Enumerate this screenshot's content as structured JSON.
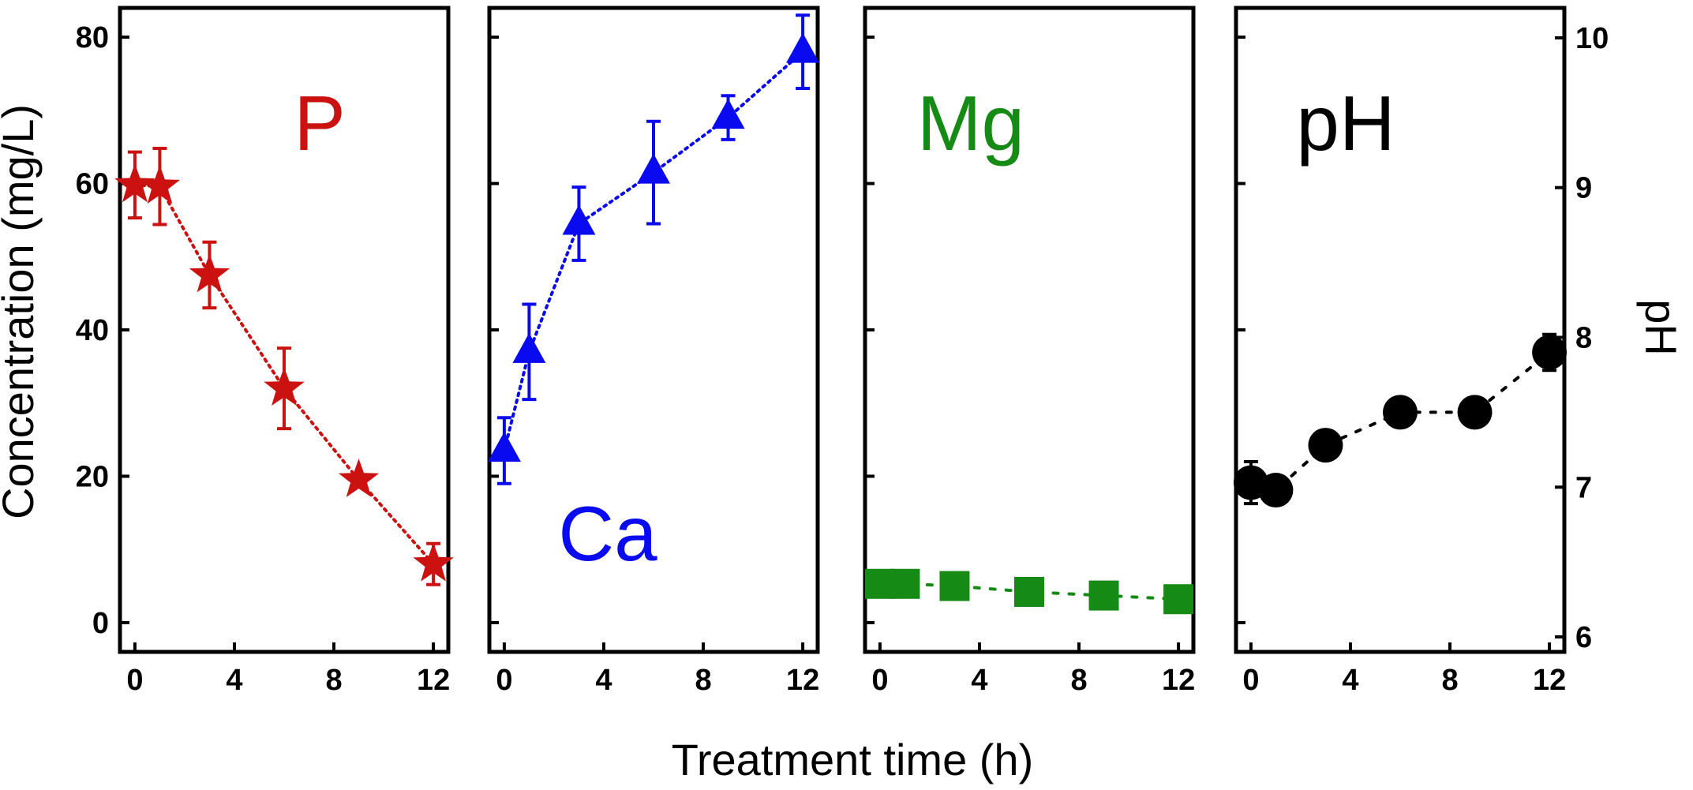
{
  "chart_data": {
    "type": "scatter",
    "xlabel": "Treatment time (h)",
    "ylabel": "Concentration (mg/L)",
    "ylabel_right": "pH",
    "ylim": [
      -4,
      84
    ],
    "ylim_right": [
      5.9,
      10.2
    ],
    "xlim": [
      -0.6,
      12.6
    ],
    "x_ticks": [
      0,
      4,
      8,
      12
    ],
    "y_ticks": [
      0,
      20,
      40,
      60,
      80
    ],
    "y_ticks_right": [
      6,
      7,
      8,
      9,
      10
    ],
    "grid": false,
    "line_style": "dotted",
    "panels": [
      {
        "label": "P",
        "color": "#cc1111",
        "marker": "star",
        "axis": "left",
        "x": [
          0,
          1,
          3,
          6,
          9,
          12
        ],
        "y": [
          59.8,
          59.6,
          47.5,
          32.0,
          19.5,
          8.0
        ],
        "error": [
          4.5,
          5.2,
          4.5,
          5.5,
          0,
          2.8
        ]
      },
      {
        "label": "Ca",
        "color": "#0a0af0",
        "marker": "triangle",
        "axis": "left",
        "x": [
          0,
          1,
          3,
          6,
          9,
          12
        ],
        "y": [
          23.5,
          37.0,
          54.5,
          61.5,
          69.0,
          78.0
        ],
        "error": [
          4.5,
          6.5,
          5.0,
          7.0,
          3.0,
          5.0
        ]
      },
      {
        "label": "Mg",
        "color": "#158a15",
        "marker": "square",
        "axis": "left",
        "x": [
          0,
          1,
          3,
          6,
          9,
          12
        ],
        "y": [
          5.3,
          5.3,
          5.0,
          4.2,
          3.7,
          3.2
        ],
        "error": [
          0.8,
          0.8,
          0.8,
          0.8,
          0.8,
          0.8
        ]
      },
      {
        "label": "pH",
        "color": "#000000",
        "marker": "circle",
        "axis": "right",
        "x": [
          0,
          1,
          3,
          6,
          9,
          12
        ],
        "y": [
          7.03,
          6.98,
          7.28,
          7.5,
          7.5,
          7.9
        ],
        "error": [
          0.14,
          0,
          0,
          0,
          0,
          0.12
        ]
      }
    ]
  }
}
